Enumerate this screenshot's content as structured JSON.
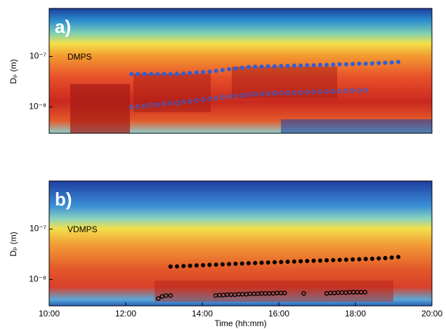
{
  "chart_data": [
    {
      "type": "scatter",
      "panel_label": "a)",
      "instrument": "DMPS",
      "ylabel": "Dₚ (m)",
      "log_y": true,
      "xlim": [
        10,
        20
      ],
      "ylim": [
        3e-09,
        9e-07
      ],
      "yticks": [
        {
          "value": 1e-08,
          "label": "10⁻⁸"
        },
        {
          "value": 1e-07,
          "label": "10⁻⁷"
        }
      ],
      "series": [
        {
          "color": "#2f5fd8",
          "filled": true,
          "x": [
            12.15,
            12.32,
            12.49,
            12.66,
            12.83,
            13.0,
            13.17,
            13.34,
            13.51,
            13.68,
            13.85,
            14.02,
            14.19,
            14.36,
            14.53,
            14.7,
            14.87,
            15.04,
            15.21,
            15.38,
            15.55,
            15.72,
            15.89,
            16.06,
            16.23,
            16.4,
            16.57,
            16.74,
            16.91,
            17.08,
            17.25,
            17.42,
            17.59,
            17.76,
            17.93,
            18.1,
            18.27,
            18.44,
            18.61,
            18.78,
            18.95,
            19.12
          ],
          "values": [
            4.5e-08,
            4.5e-08,
            4.5e-08,
            4.5e-08,
            4.5e-08,
            4.5e-08,
            4.5e-08,
            4.5e-08,
            4.6e-08,
            4.7e-08,
            4.8e-08,
            4.9e-08,
            5e-08,
            5.2e-08,
            5.4e-08,
            5.6e-08,
            5.8e-08,
            6e-08,
            6.2e-08,
            6.3e-08,
            6.3e-08,
            6.4e-08,
            6.4e-08,
            6.5e-08,
            6.5e-08,
            6.6e-08,
            6.6e-08,
            6.7e-08,
            6.7e-08,
            6.8e-08,
            6.8e-08,
            6.9e-08,
            7e-08,
            7e-08,
            7.1e-08,
            7.2e-08,
            7.2e-08,
            7.3e-08,
            7.4e-08,
            7.5e-08,
            7.6e-08,
            7.8e-08
          ]
        },
        {
          "color": "#2f5fd8",
          "filled": false,
          "x": [
            12.15,
            12.32,
            12.49,
            12.66,
            12.83,
            13.0,
            13.17,
            13.34,
            13.51,
            13.68,
            13.85,
            14.02,
            14.19,
            14.36,
            14.53,
            14.7,
            14.87,
            15.04,
            15.21,
            15.38,
            15.55,
            15.72,
            15.89,
            16.06,
            16.23,
            16.4,
            16.57,
            16.74,
            16.91,
            17.08,
            17.25,
            17.42,
            17.59,
            17.76,
            17.93,
            18.1,
            18.27
          ],
          "values": [
            1e-08,
            1e-08,
            1.05e-08,
            1.1e-08,
            1.1e-08,
            1.15e-08,
            1.2e-08,
            1.2e-08,
            1.25e-08,
            1.3e-08,
            1.35e-08,
            1.4e-08,
            1.45e-08,
            1.5e-08,
            1.55e-08,
            1.6e-08,
            1.65e-08,
            1.7e-08,
            1.75e-08,
            1.8e-08,
            1.8e-08,
            1.85e-08,
            1.85e-08,
            1.9e-08,
            1.9e-08,
            1.9e-08,
            1.95e-08,
            1.95e-08,
            2e-08,
            2e-08,
            2e-08,
            2.05e-08,
            2.05e-08,
            2.1e-08,
            2.1e-08,
            2.1e-08,
            2.15e-08
          ]
        }
      ]
    },
    {
      "type": "scatter",
      "panel_label": "b)",
      "instrument": "VDMPS",
      "ylabel": "Dₚ (m)",
      "xlabel": "Time (hh:mm)",
      "log_y": true,
      "xlim": [
        10,
        20
      ],
      "ylim": [
        3e-09,
        9e-07
      ],
      "xticks": [
        {
          "value": 10,
          "label": "10:00"
        },
        {
          "value": 12,
          "label": "12:00"
        },
        {
          "value": 14,
          "label": "14:00"
        },
        {
          "value": 16,
          "label": "16:00"
        },
        {
          "value": 18,
          "label": "18:00"
        },
        {
          "value": 20,
          "label": "20:00"
        }
      ],
      "yticks": [
        {
          "value": 1e-08,
          "label": "10⁻⁸"
        },
        {
          "value": 1e-07,
          "label": "10⁻⁷"
        }
      ],
      "series": [
        {
          "color": "#000000",
          "filled": true,
          "x": [
            13.17,
            13.34,
            13.51,
            13.68,
            13.85,
            14.02,
            14.19,
            14.36,
            14.53,
            14.7,
            14.87,
            15.04,
            15.21,
            15.38,
            15.55,
            15.72,
            15.89,
            16.06,
            16.23,
            16.4,
            16.57,
            16.74,
            16.91,
            17.08,
            17.25,
            17.42,
            17.59,
            17.76,
            17.93,
            18.1,
            18.27,
            18.44,
            18.61,
            18.78,
            18.95,
            19.12
          ],
          "values": [
            1.8e-08,
            1.82e-08,
            1.85e-08,
            1.87e-08,
            1.9e-08,
            1.92e-08,
            1.95e-08,
            1.97e-08,
            2e-08,
            2.02e-08,
            2.05e-08,
            2.07e-08,
            2.1e-08,
            2.12e-08,
            2.15e-08,
            2.17e-08,
            2.2e-08,
            2.22e-08,
            2.25e-08,
            2.27e-08,
            2.3e-08,
            2.32e-08,
            2.35e-08,
            2.37e-08,
            2.4e-08,
            2.42e-08,
            2.45e-08,
            2.47e-08,
            2.5e-08,
            2.52e-08,
            2.55e-08,
            2.58e-08,
            2.62e-08,
            2.66e-08,
            2.72e-08,
            2.8e-08
          ]
        },
        {
          "color": "#000000",
          "filled": false,
          "x": [
            12.85,
            12.95,
            13.05,
            13.17,
            14.35,
            14.45,
            14.55,
            14.65,
            14.75,
            14.85,
            14.95,
            15.05,
            15.15,
            15.25,
            15.35,
            15.45,
            15.55,
            15.65,
            15.75,
            15.85,
            15.95,
            16.05,
            16.15,
            16.65,
            17.25,
            17.35,
            17.45,
            17.55,
            17.65,
            17.75,
            17.85,
            17.95,
            18.05,
            18.15,
            18.25
          ],
          "values": [
            4.2e-09,
            4.6e-09,
            4.8e-09,
            4.8e-09,
            4.8e-09,
            4.9e-09,
            4.9e-09,
            5e-09,
            5e-09,
            5e-09,
            5.1e-09,
            5.1e-09,
            5.1e-09,
            5.2e-09,
            5.2e-09,
            5.2e-09,
            5.3e-09,
            5.3e-09,
            5.3e-09,
            5.3e-09,
            5.4e-09,
            5.4e-09,
            5.4e-09,
            5.3e-09,
            5.3e-09,
            5.4e-09,
            5.4e-09,
            5.5e-09,
            5.5e-09,
            5.5e-09,
            5.6e-09,
            5.6e-09,
            5.6e-09,
            5.6e-09,
            5.6e-09
          ]
        }
      ]
    }
  ]
}
